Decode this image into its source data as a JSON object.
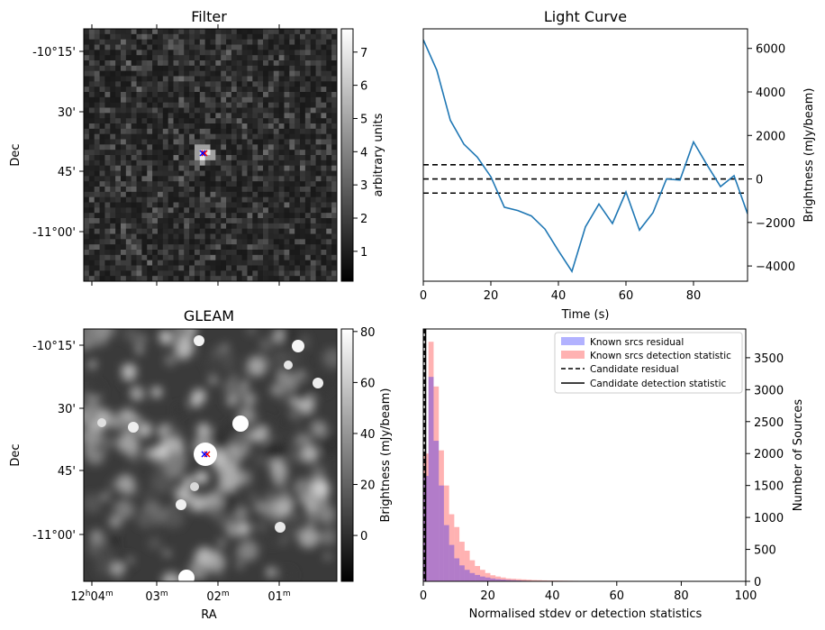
{
  "chart_data": [
    {
      "type": "heatmap",
      "title": "Filter",
      "ylabel": "Dec",
      "ytick_labels": [
        "-10°15'",
        "30'",
        "45'",
        "-11°00'"
      ],
      "colorbar": {
        "label": "arbitrary units",
        "range": [
          0.1,
          7.7
        ],
        "ticks": [
          1,
          2,
          3,
          4,
          5,
          6,
          7
        ]
      },
      "candidate_marker_colors": [
        "#ff0000",
        "#0000ff"
      ]
    },
    {
      "type": "line",
      "title": "Light Curve",
      "xlabel": "Time (s)",
      "ylabel": "Brightness (mJy/beam)",
      "xlim": [
        0,
        96
      ],
      "ylim": [
        -4700,
        6900
      ],
      "xticks": [
        0,
        20,
        40,
        60,
        80
      ],
      "yticks": [
        -4000,
        -2000,
        0,
        2000,
        4000,
        6000
      ],
      "series": [
        {
          "name": "light curve",
          "color": "#1f77b4",
          "x": [
            0,
            4,
            8,
            12,
            16,
            20,
            24,
            28,
            32,
            36,
            40,
            44,
            48,
            52,
            56,
            60,
            64,
            68,
            72,
            76,
            80,
            84,
            88,
            92,
            96
          ],
          "y": [
            6400,
            5000,
            2700,
            1600,
            1000,
            100,
            -1300,
            -1450,
            -1700,
            -2300,
            -3300,
            -4250,
            -2200,
            -1150,
            -2050,
            -600,
            -2350,
            -1550,
            0,
            -50,
            1700,
            650,
            -350,
            150,
            -1600
          ]
        }
      ],
      "hlines": [
        {
          "y": 650,
          "style": "dashed",
          "color": "#000000"
        },
        {
          "y": 0,
          "style": "dashed",
          "color": "#000000"
        },
        {
          "y": -650,
          "style": "dashed",
          "color": "#000000"
        }
      ]
    },
    {
      "type": "heatmap",
      "title": "GLEAM",
      "xlabel": "RA",
      "ylabel": "Dec",
      "xtick_labels": [
        "12h04m",
        "03m",
        "02m",
        "01m"
      ],
      "ytick_labels": [
        "-10°15'",
        "30'",
        "45'",
        "-11°00'"
      ],
      "colorbar": {
        "label": "Brightness (mJy/beam)",
        "range": [
          -18,
          81
        ],
        "ticks": [
          0,
          20,
          40,
          60,
          80
        ]
      },
      "candidate_marker_colors": [
        "#ff0000",
        "#0000ff"
      ]
    },
    {
      "type": "bar",
      "title": "",
      "xlabel": "Normalised stdev or detection statistics",
      "ylabel": "Number of Sources",
      "xlim": [
        0,
        100
      ],
      "ylim": [
        0,
        3950
      ],
      "xticks": [
        0,
        20,
        40,
        60,
        80,
        100
      ],
      "yticks": [
        0,
        500,
        1000,
        1500,
        2000,
        2500,
        3000,
        3500
      ],
      "bin_width": 1.6,
      "series": [
        {
          "name": "Known srcs residual",
          "color": "#0000ff",
          "alpha": 0.3,
          "x": [
            0,
            1.6,
            3.2,
            4.8,
            6.4,
            8.0,
            9.6,
            11.2,
            12.8,
            14.4,
            16.0,
            17.6,
            19.2,
            20.8,
            22.4,
            24.0,
            25.6,
            27.2,
            28.8,
            30.4,
            32.0,
            33.6,
            35.2
          ],
          "values": [
            1650,
            3200,
            2200,
            1500,
            880,
            570,
            360,
            250,
            180,
            130,
            100,
            75,
            60,
            45,
            35,
            28,
            22,
            18,
            14,
            10,
            8,
            6,
            5
          ]
        },
        {
          "name": "Known srcs detection statistic",
          "color": "#ff0000",
          "alpha": 0.3,
          "x": [
            0,
            1.6,
            3.2,
            4.8,
            6.4,
            8.0,
            9.6,
            11.2,
            12.8,
            14.4,
            16.0,
            17.6,
            19.2,
            20.8,
            22.4,
            24.0,
            25.6,
            27.2,
            28.8,
            30.4,
            32.0,
            33.6,
            35.2,
            36.8,
            38.4,
            40.0,
            41.6,
            43.2,
            44.8,
            46.4,
            48.0,
            49.6,
            51.2,
            52.8,
            54.4,
            56.0,
            57.6,
            59.2,
            60.8,
            62.4,
            64.0,
            65.6,
            67.2,
            68.8,
            70.4,
            72.0
          ],
          "values": [
            2000,
            3750,
            3050,
            2050,
            1500,
            1050,
            850,
            620,
            480,
            330,
            240,
            180,
            130,
            95,
            75,
            60,
            45,
            40,
            35,
            30,
            25,
            20,
            18,
            15,
            13,
            12,
            11,
            10,
            9,
            8,
            7,
            6,
            6,
            5,
            5,
            4,
            4,
            4,
            3,
            3,
            3,
            2,
            2,
            2,
            2,
            2
          ]
        }
      ],
      "vlines": [
        {
          "name": "Candidate residual",
          "x": 0.3,
          "style": "dashed",
          "color": "#000000"
        },
        {
          "name": "Candidate detection statistic",
          "x": 0.7,
          "style": "solid",
          "color": "#000000"
        }
      ],
      "legend_position": "top-right"
    }
  ]
}
